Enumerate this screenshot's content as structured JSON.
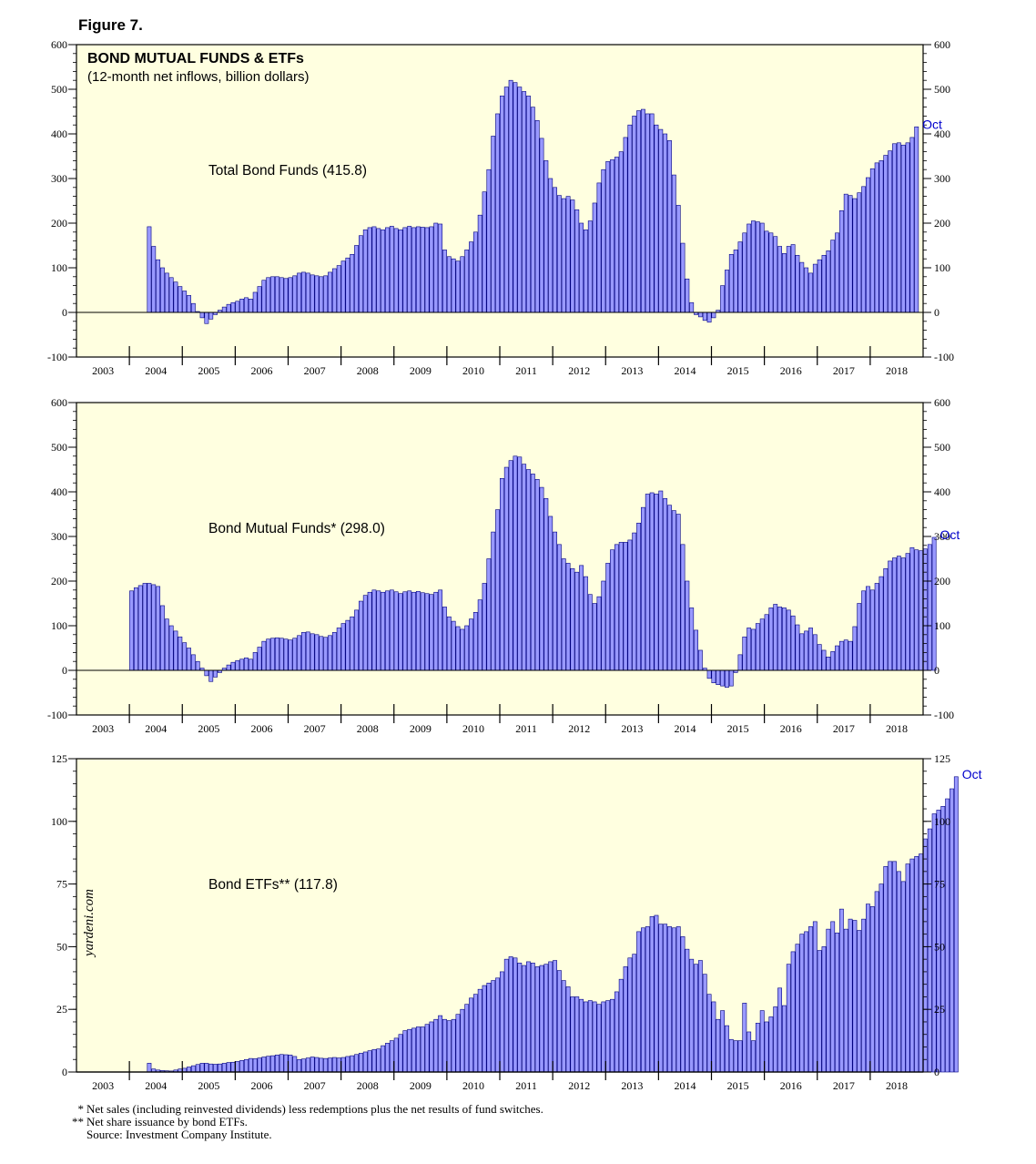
{
  "figure_title": "Figure 7.",
  "watermark": "yardeni.com",
  "footnotes": [
    {
      "mark": "*",
      "text": "Net sales (including reinvested dividends) less redemptions plus the net results of fund switches."
    },
    {
      "mark": "**",
      "text": "Net share issuance by bond ETFs."
    },
    {
      "mark": "",
      "text": "Source: Investment Company Institute."
    }
  ],
  "colors": {
    "plot_bg": "#FFFFE0",
    "bar_fill": "#9999FF",
    "bar_stroke": "#000080",
    "end_label": "#0000CC"
  },
  "chart_data": [
    {
      "type": "bar",
      "title": "BOND MUTUAL FUNDS & ETFs",
      "subtitle": "(12-month net inflows, billion dollars)",
      "series_label": "Total Bond Funds (415.8)",
      "end_label": "Oct",
      "x_ticks": [
        "2003",
        "2004",
        "2005",
        "2006",
        "2007",
        "2008",
        "2009",
        "2010",
        "2011",
        "2012",
        "2013",
        "2014",
        "2015",
        "2016",
        "2017",
        "2018"
      ],
      "ylim": [
        -100,
        600
      ],
      "y_ticks": [
        -100,
        0,
        100,
        200,
        300,
        400,
        500,
        600
      ],
      "start": "2003-01",
      "values": [
        null,
        null,
        null,
        null,
        null,
        null,
        null,
        null,
        null,
        null,
        null,
        null,
        null,
        null,
        null,
        null,
        192,
        148,
        118,
        100,
        88,
        78,
        68,
        58,
        48,
        38,
        20,
        2,
        -12,
        -25,
        -15,
        -5,
        5,
        12,
        18,
        22,
        25,
        30,
        33,
        30,
        45,
        58,
        72,
        78,
        80,
        80,
        78,
        76,
        78,
        82,
        88,
        90,
        88,
        84,
        82,
        80,
        82,
        90,
        98,
        105,
        115,
        122,
        130,
        150,
        172,
        185,
        190,
        192,
        188,
        185,
        190,
        193,
        188,
        185,
        190,
        193,
        190,
        192,
        191,
        190,
        192,
        200,
        198,
        140,
        125,
        120,
        115,
        125,
        140,
        158,
        180,
        218,
        270,
        320,
        395,
        445,
        485,
        505,
        520,
        515,
        505,
        495,
        485,
        460,
        430,
        390,
        340,
        300,
        280,
        262,
        255,
        260,
        252,
        230,
        200,
        185,
        205,
        245,
        290,
        320,
        338,
        342,
        348,
        360,
        392,
        420,
        440,
        452,
        455,
        445,
        445,
        420,
        410,
        400,
        385,
        308,
        240,
        155,
        75,
        22,
        -5,
        -10,
        -18,
        -22,
        -12,
        5,
        60,
        95,
        130,
        140,
        158,
        178,
        198,
        205,
        203,
        200,
        182,
        178,
        170,
        148,
        132,
        148,
        152,
        128,
        112,
        100,
        88,
        108,
        118,
        128,
        138,
        162,
        178,
        228,
        265,
        262,
        255,
        268,
        282,
        302,
        322,
        335,
        340,
        352,
        362,
        378,
        380,
        375,
        380,
        392,
        415.8
      ]
    },
    {
      "type": "bar",
      "series_label": "Bond Mutual Funds* (298.0)",
      "end_label": "Oct",
      "x_ticks": [
        "2003",
        "2004",
        "2005",
        "2006",
        "2007",
        "2008",
        "2009",
        "2010",
        "2011",
        "2012",
        "2013",
        "2014",
        "2015",
        "2016",
        "2017",
        "2018"
      ],
      "ylim": [
        -100,
        600
      ],
      "y_ticks": [
        -100,
        0,
        100,
        200,
        300,
        400,
        500,
        600
      ],
      "start": "2003-01",
      "values": [
        null,
        null,
        null,
        null,
        null,
        null,
        null,
        null,
        null,
        null,
        null,
        null,
        178,
        185,
        190,
        195,
        195,
        192,
        188,
        145,
        115,
        100,
        88,
        75,
        62,
        50,
        35,
        20,
        5,
        -12,
        -25,
        -15,
        -5,
        5,
        12,
        18,
        22,
        25,
        28,
        25,
        40,
        52,
        65,
        70,
        72,
        73,
        72,
        70,
        68,
        72,
        78,
        85,
        86,
        82,
        80,
        76,
        74,
        78,
        85,
        95,
        105,
        112,
        120,
        135,
        155,
        168,
        175,
        180,
        178,
        175,
        178,
        180,
        176,
        172,
        176,
        178,
        175,
        177,
        174,
        172,
        170,
        175,
        180,
        142,
        120,
        110,
        98,
        92,
        100,
        115,
        130,
        158,
        195,
        250,
        310,
        360,
        430,
        455,
        470,
        480,
        478,
        462,
        450,
        440,
        428,
        410,
        385,
        345,
        310,
        282,
        250,
        240,
        228,
        220,
        235,
        210,
        170,
        150,
        165,
        200,
        240,
        270,
        282,
        287,
        287,
        292,
        308,
        330,
        365,
        395,
        398,
        395,
        402,
        385,
        370,
        358,
        350,
        282,
        200,
        140,
        90,
        45,
        5,
        -18,
        -28,
        -32,
        -35,
        -38,
        -35,
        -5,
        35,
        75,
        95,
        92,
        105,
        115,
        125,
        140,
        148,
        142,
        140,
        135,
        122,
        102,
        82,
        88,
        95,
        80,
        58,
        45,
        30,
        42,
        55,
        65,
        68,
        65,
        98,
        150,
        178,
        188,
        180,
        195,
        210,
        228,
        245,
        252,
        256,
        252,
        262,
        275,
        270,
        268,
        272,
        282,
        298.0
      ]
    },
    {
      "type": "bar",
      "series_label": "Bond ETFs** (117.8)",
      "end_label": "Oct",
      "x_ticks": [
        "2003",
        "2004",
        "2005",
        "2006",
        "2007",
        "2008",
        "2009",
        "2010",
        "2011",
        "2012",
        "2013",
        "2014",
        "2015",
        "2016",
        "2017",
        "2018"
      ],
      "ylim": [
        0,
        125
      ],
      "y_ticks": [
        0,
        25,
        50,
        75,
        100,
        125
      ],
      "start": "2003-01",
      "values": [
        null,
        null,
        null,
        null,
        null,
        null,
        null,
        null,
        null,
        null,
        null,
        null,
        null,
        null,
        null,
        null,
        3.5,
        1.2,
        0.8,
        0.6,
        0.5,
        0.4,
        0.8,
        1.2,
        1.5,
        2,
        2.5,
        3,
        3.5,
        3.5,
        3.2,
        3.1,
        3.2,
        3.5,
        3.8,
        3.9,
        4.2,
        4.6,
        5,
        5.4,
        5.3,
        5.6,
        6,
        6.3,
        6.5,
        6.8,
        7,
        6.9,
        6.8,
        6.2,
        5,
        5.2,
        5.6,
        6,
        5.8,
        5.5,
        5.4,
        5.6,
        5.8,
        5.6,
        5.8,
        6.2,
        6.5,
        7,
        7.5,
        8,
        8.5,
        9,
        9.2,
        10.5,
        11.5,
        12.5,
        13.5,
        15,
        16.5,
        17,
        17.5,
        18,
        18,
        19,
        20,
        21,
        22.5,
        21,
        20.5,
        21,
        23,
        25,
        27,
        29.5,
        31,
        33,
        34.5,
        35.5,
        36.5,
        37.5,
        40,
        45,
        46,
        45.5,
        43.5,
        42.5,
        44,
        43.5,
        42,
        42.5,
        43,
        44,
        44.5,
        40.5,
        36.5,
        34,
        30,
        30,
        29,
        28,
        28.5,
        28,
        27,
        28,
        28.5,
        29,
        32,
        37,
        42,
        45.5,
        47,
        56,
        57.5,
        58,
        62,
        62.5,
        59,
        59,
        58,
        57.5,
        58,
        54,
        49,
        45,
        43,
        44.5,
        39,
        31,
        28,
        21,
        24.5,
        18.5,
        13,
        12.5,
        12.5,
        27.5,
        16,
        12.5,
        19.5,
        24.5,
        20,
        22,
        26,
        33.5,
        26.5,
        43,
        48,
        51,
        55,
        56,
        58,
        60,
        48.5,
        50,
        57,
        60,
        55.5,
        65,
        57,
        61,
        60.5,
        56.5,
        61,
        67,
        66,
        72,
        75,
        82,
        84,
        84,
        80,
        76,
        83,
        85,
        86,
        87,
        93,
        97,
        103,
        104.5,
        106,
        109,
        113,
        117.8
      ]
    }
  ]
}
